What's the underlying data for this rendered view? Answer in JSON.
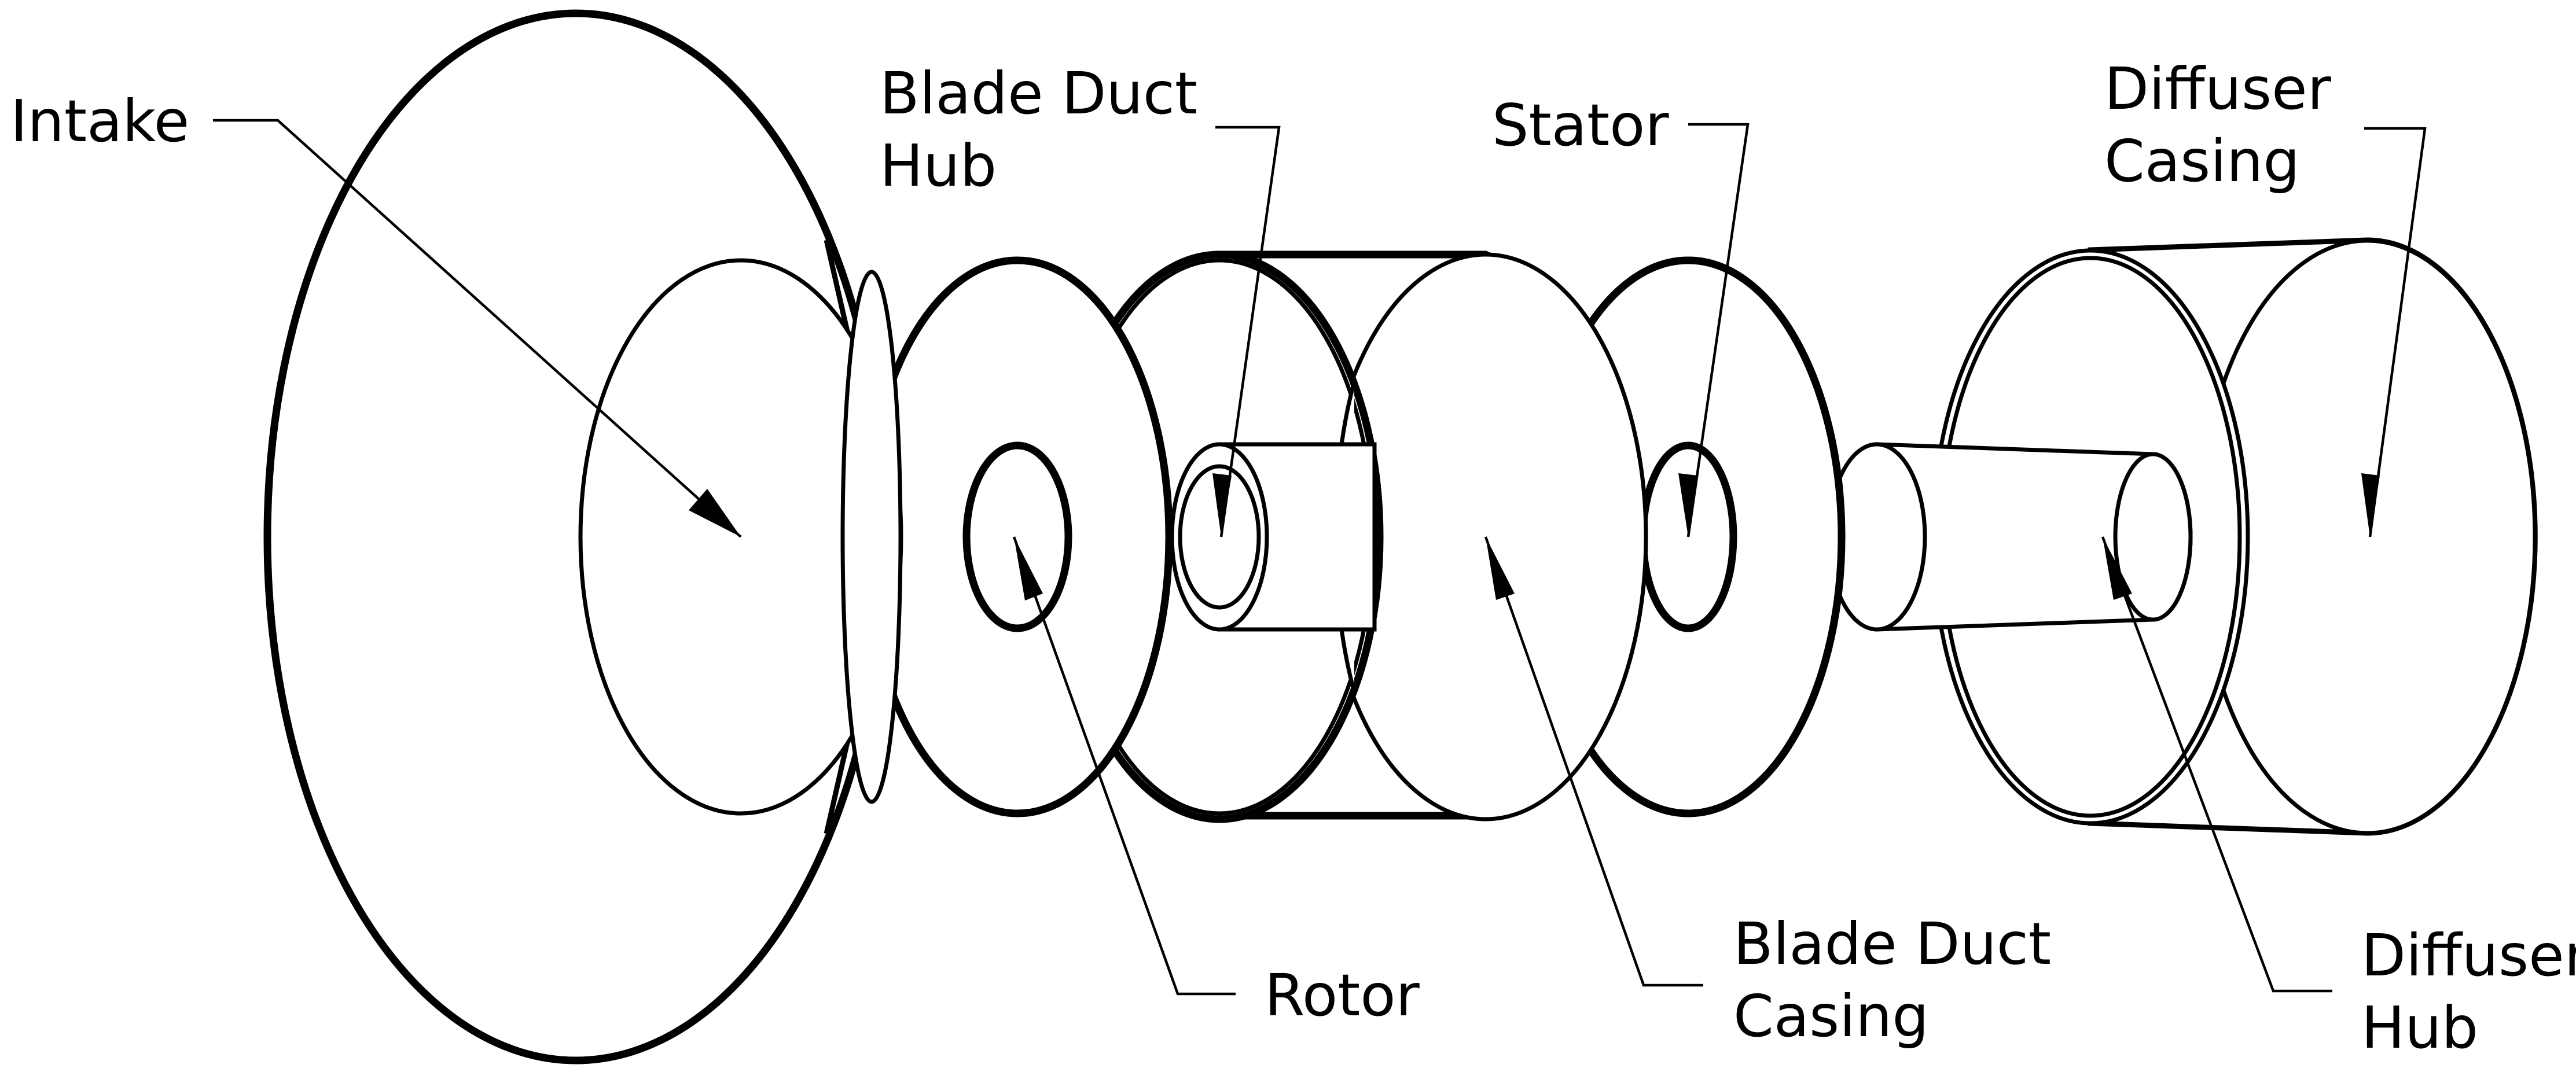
{
  "diagram": {
    "labels": {
      "intake": [
        "Intake"
      ],
      "blade_duct_hub": [
        "Blade Duct",
        "Hub"
      ],
      "stator": [
        "Stator"
      ],
      "diffuser_casing": [
        "Diffuser",
        "Casing"
      ],
      "rotor": [
        "Rotor"
      ],
      "blade_duct_casing": [
        "Blade Duct",
        "Casing"
      ],
      "diffuser_hub": [
        "Diffuser",
        "Hub"
      ]
    },
    "colors": {
      "line": "#000000",
      "background": "#ffffff"
    }
  }
}
